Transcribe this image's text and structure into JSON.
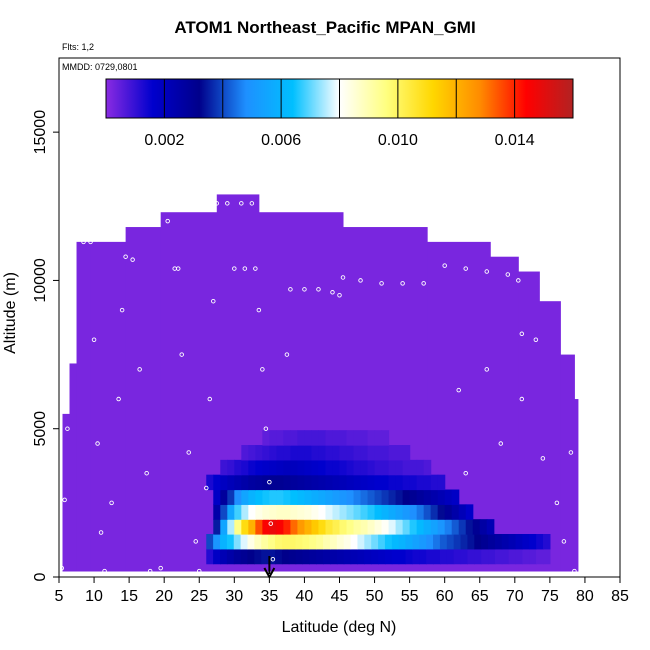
{
  "chart_data": {
    "type": "heatmap",
    "title": "ATOM1 Northeast_Pacific MPAN_GMI",
    "flights_label": "Flts: 1,2",
    "dates_label": "MMDD: 0729,0801",
    "xlabel": "Latitude (deg N)",
    "ylabel": "Altitude (m)",
    "xlim": [
      5,
      85
    ],
    "ylim": [
      0,
      17500
    ],
    "xticks": [
      5,
      10,
      15,
      20,
      25,
      30,
      35,
      40,
      45,
      50,
      55,
      60,
      65,
      70,
      75,
      80,
      85
    ],
    "yticks": [
      0,
      5000,
      10000,
      15000
    ],
    "colorbar": {
      "range": [
        0,
        0.016
      ],
      "ticks": [
        "0.002",
        "0.006",
        "0.010",
        "0.014"
      ],
      "tick_values": [
        0.002,
        0.006,
        0.01,
        0.014
      ],
      "colors": [
        "#8a2be2",
        "#0000cd",
        "#00008b",
        "#1e90ff",
        "#00bfff",
        "#ffffff",
        "#ffff80",
        "#ffd700",
        "#ff8c00",
        "#ff0000",
        "#b22222"
      ]
    },
    "background_value": 0.0002,
    "model_domain_tops": [
      {
        "lat": [
          5.5,
          6.5
        ],
        "top": 5500
      },
      {
        "lat": [
          6.5,
          7.5
        ],
        "top": 7200
      },
      {
        "lat": [
          7.5,
          9.5
        ],
        "top": 11300
      },
      {
        "lat": [
          9.5,
          14.5
        ],
        "top": 11300
      },
      {
        "lat": [
          14.5,
          19.5
        ],
        "top": 11800
      },
      {
        "lat": [
          19.5,
          27.5
        ],
        "top": 12300
      },
      {
        "lat": [
          27.5,
          33.5
        ],
        "top": 12900
      },
      {
        "lat": [
          33.5,
          45.5
        ],
        "top": 12300
      },
      {
        "lat": [
          45.5,
          57.5
        ],
        "top": 11800
      },
      {
        "lat": [
          57.5,
          66.5
        ],
        "top": 11300
      },
      {
        "lat": [
          66.5,
          70.5
        ],
        "top": 10800
      },
      {
        "lat": [
          70.5,
          73.5
        ],
        "top": 10300
      },
      {
        "lat": [
          73.5,
          76.5
        ],
        "top": 9300
      },
      {
        "lat": [
          76.5,
          78.5
        ],
        "top": 7500
      },
      {
        "lat": [
          78.5,
          79.0
        ],
        "top": 6000
      }
    ],
    "plume_rows": [
      {
        "alt": 700,
        "lat": [
          26,
          75
        ],
        "values": [
          0.0012,
          0.0018,
          0.0022,
          0.0025,
          0.0028,
          0.003,
          0.0032,
          0.0033,
          0.0034,
          0.0034,
          0.0033,
          0.0032,
          0.0031,
          0.003,
          0.0029,
          0.0028,
          0.0027,
          0.0026,
          0.0025,
          0.0024,
          0.0023,
          0.0022,
          0.0021,
          0.002,
          0.0019,
          0.0018,
          0.0017,
          0.0016,
          0.0016,
          0.0015,
          0.0014,
          0.0014,
          0.0013,
          0.0013,
          0.0012,
          0.0012,
          0.0011,
          0.0011,
          0.001,
          0.001,
          0.0009,
          0.0009,
          0.0008,
          0.0008,
          0.0007,
          0.0007,
          0.0006,
          0.0006,
          0.0005,
          0.0005
        ]
      },
      {
        "alt": 1200,
        "lat": [
          26,
          75
        ],
        "values": [
          0.004,
          0.005,
          0.006,
          0.0065,
          0.0072,
          0.0078,
          0.0083,
          0.0088,
          0.0092,
          0.0095,
          0.0098,
          0.0099,
          0.0099,
          0.0098,
          0.0097,
          0.0095,
          0.0093,
          0.009,
          0.0088,
          0.0085,
          0.0083,
          0.008,
          0.0077,
          0.0074,
          0.0071,
          0.0068,
          0.0065,
          0.0062,
          0.006,
          0.0057,
          0.0054,
          0.0051,
          0.0048,
          0.0045,
          0.0042,
          0.004,
          0.0038,
          0.0036,
          0.0034,
          0.0032,
          0.003,
          0.0028,
          0.0026,
          0.0024,
          0.0022,
          0.002,
          0.0018,
          0.0016,
          0.0014,
          0.0012
        ]
      },
      {
        "alt": 1700,
        "lat": [
          27,
          67
        ],
        "values": [
          0.0035,
          0.0055,
          0.0075,
          0.0095,
          0.011,
          0.012,
          0.0135,
          0.0145,
          0.0148,
          0.0145,
          0.014,
          0.0132,
          0.0125,
          0.012,
          0.0115,
          0.011,
          0.0105,
          0.0102,
          0.0098,
          0.0095,
          0.0092,
          0.009,
          0.0087,
          0.0084,
          0.0081,
          0.0078,
          0.0074,
          0.007,
          0.0066,
          0.0062,
          0.0058,
          0.0054,
          0.005,
          0.0046,
          0.0042,
          0.0038,
          0.0034,
          0.003,
          0.0026,
          0.0022
        ]
      },
      {
        "alt": 2200,
        "lat": [
          27,
          64
        ],
        "values": [
          0.0025,
          0.004,
          0.0055,
          0.0068,
          0.0075,
          0.008,
          0.0083,
          0.0085,
          0.0086,
          0.0087,
          0.0087,
          0.0086,
          0.0085,
          0.0084,
          0.0082,
          0.008,
          0.0078,
          0.0076,
          0.0074,
          0.0072,
          0.007,
          0.0068,
          0.0066,
          0.0063,
          0.006,
          0.0057,
          0.0054,
          0.0051,
          0.0048,
          0.0045,
          0.0041,
          0.0037,
          0.0033,
          0.0029,
          0.0025,
          0.0021,
          0.0017
        ]
      },
      {
        "alt": 2700,
        "lat": [
          27,
          62
        ],
        "values": [
          0.0018,
          0.0028,
          0.0038,
          0.0048,
          0.0055,
          0.006,
          0.0063,
          0.0065,
          0.0066,
          0.0066,
          0.0065,
          0.0064,
          0.0062,
          0.006,
          0.0058,
          0.0056,
          0.0054,
          0.0052,
          0.005,
          0.0048,
          0.0046,
          0.0044,
          0.0042,
          0.004,
          0.0038,
          0.0036,
          0.0034,
          0.0032,
          0.003,
          0.0028,
          0.0026,
          0.0024,
          0.0022,
          0.002,
          0.0018
        ]
      },
      {
        "alt": 3200,
        "lat": [
          26,
          60
        ],
        "values": [
          0.0013,
          0.0016,
          0.0019,
          0.0021,
          0.0023,
          0.0025,
          0.0027,
          0.0028,
          0.0029,
          0.003,
          0.003,
          0.0029,
          0.0028,
          0.0027,
          0.0026,
          0.0025,
          0.0024,
          0.0023,
          0.0022,
          0.0021,
          0.002,
          0.0019,
          0.0018,
          0.0017,
          0.0016,
          0.0016,
          0.0015,
          0.0015,
          0.0014,
          0.0014,
          0.0013,
          0.0013,
          0.0012,
          0.0012
        ]
      },
      {
        "alt": 3700,
        "lat": [
          28,
          58
        ],
        "values": [
          0.0009,
          0.001,
          0.0012,
          0.0013,
          0.0015,
          0.0016,
          0.0017,
          0.0018,
          0.0019,
          0.002,
          0.002,
          0.0019,
          0.0018,
          0.0017,
          0.0016,
          0.0015,
          0.0015,
          0.0014,
          0.0013,
          0.0012,
          0.0012,
          0.0011,
          0.001,
          0.001,
          0.0009,
          0.0009,
          0.0008,
          0.0008,
          0.0008,
          0.0007
        ]
      },
      {
        "alt": 4200,
        "lat": [
          31,
          55
        ],
        "values": [
          0.0007,
          0.0008,
          0.0009,
          0.001,
          0.0011,
          0.0012,
          0.0012,
          0.0013,
          0.0013,
          0.0013,
          0.0012,
          0.0012,
          0.0011,
          0.0011,
          0.001,
          0.001,
          0.0009,
          0.0009,
          0.0008,
          0.0008,
          0.0008,
          0.0007,
          0.0007,
          0.0007
        ]
      },
      {
        "alt": 4700,
        "lat": [
          34,
          52
        ],
        "values": [
          0.0005,
          0.0006,
          0.0006,
          0.0007,
          0.0007,
          0.0008,
          0.0008,
          0.0008,
          0.0008,
          0.0007,
          0.0007,
          0.0007,
          0.0006,
          0.0006,
          0.0006,
          0.0005,
          0.0005,
          0.0005
        ]
      }
    ],
    "flight_track": [
      {
        "lat": 5.4,
        "alt": 300
      },
      {
        "lat": 5.8,
        "alt": 2600
      },
      {
        "lat": 6.2,
        "alt": 5000
      },
      {
        "lat": 6.6,
        "alt": 7500
      },
      {
        "lat": 7.0,
        "alt": 9300
      },
      {
        "lat": 8.5,
        "alt": 11300
      },
      {
        "lat": 9.5,
        "alt": 11300
      },
      {
        "lat": 10.0,
        "alt": 8000
      },
      {
        "lat": 10.5,
        "alt": 4500
      },
      {
        "lat": 11.0,
        "alt": 1500
      },
      {
        "lat": 11.5,
        "alt": 200
      },
      {
        "lat": 12.5,
        "alt": 2500
      },
      {
        "lat": 13.5,
        "alt": 6000
      },
      {
        "lat": 14.0,
        "alt": 9000
      },
      {
        "lat": 14.5,
        "alt": 10800
      },
      {
        "lat": 15.5,
        "alt": 10700
      },
      {
        "lat": 16.5,
        "alt": 7000
      },
      {
        "lat": 17.5,
        "alt": 3500
      },
      {
        "lat": 18.0,
        "alt": 200
      },
      {
        "lat": 19.5,
        "alt": 300
      },
      {
        "lat": 20.5,
        "alt": 12000
      },
      {
        "lat": 21.5,
        "alt": 10400
      },
      {
        "lat": 22.0,
        "alt": 10400
      },
      {
        "lat": 22.5,
        "alt": 7500
      },
      {
        "lat": 23.5,
        "alt": 4200
      },
      {
        "lat": 24.5,
        "alt": 1200
      },
      {
        "lat": 25.0,
        "alt": 200
      },
      {
        "lat": 26.0,
        "alt": 3000
      },
      {
        "lat": 26.5,
        "alt": 6000
      },
      {
        "lat": 27.0,
        "alt": 9300
      },
      {
        "lat": 27.5,
        "alt": 12600
      },
      {
        "lat": 29.0,
        "alt": 12600
      },
      {
        "lat": 31.0,
        "alt": 12600
      },
      {
        "lat": 32.5,
        "alt": 12600
      },
      {
        "lat": 30.0,
        "alt": 10400
      },
      {
        "lat": 31.5,
        "alt": 10400
      },
      {
        "lat": 33.0,
        "alt": 10400
      },
      {
        "lat": 33.5,
        "alt": 9000
      },
      {
        "lat": 34.0,
        "alt": 7000
      },
      {
        "lat": 34.5,
        "alt": 5000
      },
      {
        "lat": 35.0,
        "alt": 3200
      },
      {
        "lat": 35.2,
        "alt": 1800
      },
      {
        "lat": 35.5,
        "alt": 600
      },
      {
        "lat": 37.5,
        "alt": 7500
      },
      {
        "lat": 38.0,
        "alt": 9700
      },
      {
        "lat": 40.0,
        "alt": 9700
      },
      {
        "lat": 42.0,
        "alt": 9700
      },
      {
        "lat": 44.0,
        "alt": 9600
      },
      {
        "lat": 45.0,
        "alt": 9500
      },
      {
        "lat": 45.5,
        "alt": 10100
      },
      {
        "lat": 48.0,
        "alt": 10000
      },
      {
        "lat": 51.0,
        "alt": 9900
      },
      {
        "lat": 54.0,
        "alt": 9900
      },
      {
        "lat": 57.0,
        "alt": 9900
      },
      {
        "lat": 60.0,
        "alt": 10500
      },
      {
        "lat": 63.0,
        "alt": 10400
      },
      {
        "lat": 66.0,
        "alt": 10300
      },
      {
        "lat": 69.0,
        "alt": 10200
      },
      {
        "lat": 70.5,
        "alt": 10000
      },
      {
        "lat": 71.0,
        "alt": 8200
      },
      {
        "lat": 73.0,
        "alt": 8000
      },
      {
        "lat": 74.5,
        "alt": 9700
      },
      {
        "lat": 76.5,
        "alt": 9500
      },
      {
        "lat": 77.0,
        "alt": 8000
      },
      {
        "lat": 62.0,
        "alt": 6300
      },
      {
        "lat": 63.0,
        "alt": 3500
      },
      {
        "lat": 66.0,
        "alt": 7000
      },
      {
        "lat": 68.0,
        "alt": 4500
      },
      {
        "lat": 71.0,
        "alt": 6000
      },
      {
        "lat": 74.0,
        "alt": 4000
      },
      {
        "lat": 76.0,
        "alt": 2500
      },
      {
        "lat": 77.0,
        "alt": 1200
      },
      {
        "lat": 78.0,
        "alt": 4200
      },
      {
        "lat": 78.5,
        "alt": 200
      }
    ],
    "marker": {
      "lat": 35,
      "alt": 0,
      "label": "down-arrow"
    }
  }
}
